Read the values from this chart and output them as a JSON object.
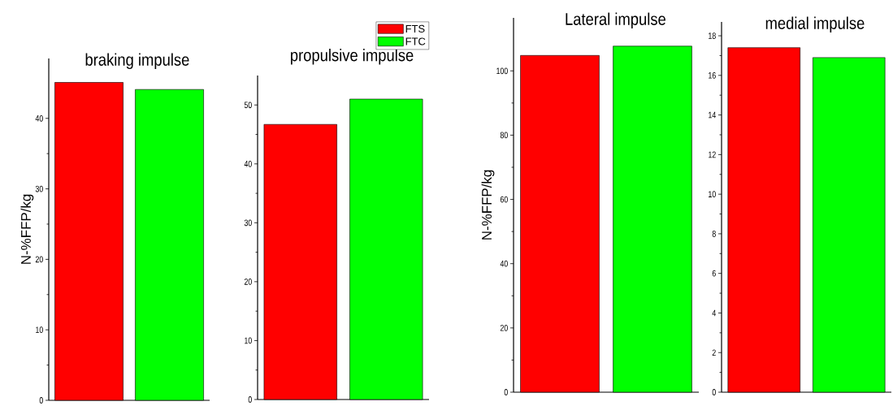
{
  "chart_data": [
    {
      "type": "bar",
      "title": "braking impulse",
      "ylabel": "N-%FFP/kg",
      "categories": [
        null,
        null
      ],
      "ylim": [
        0,
        48.5
      ],
      "yticks": [
        0,
        10,
        20,
        30,
        40
      ],
      "series": [
        {
          "color": "#ff0000",
          "values": [
            45.1,
            null
          ]
        },
        {
          "color": "#00ff00",
          "values": [
            null,
            44.1
          ]
        }
      ]
    },
    {
      "type": "bar",
      "title": "propulsive impulse",
      "categories": [
        null,
        null
      ],
      "ylim": [
        0,
        55
      ],
      "yticks": [
        0,
        10,
        20,
        30,
        40,
        50
      ],
      "legend": "top right",
      "series": [
        {
          "name": "FTS",
          "color": "#ff0000",
          "values": [
            46.7,
            null
          ]
        },
        {
          "name": "FTC",
          "color": "#00ff00",
          "values": [
            null,
            51.0
          ]
        }
      ]
    },
    {
      "type": "bar",
      "title": "Lateral impulse",
      "ylabel": "N-%FFP/kg",
      "categories": [
        null,
        null
      ],
      "ylim": [
        0,
        116.5
      ],
      "yticks": [
        0,
        20,
        40,
        60,
        80,
        100
      ],
      "series": [
        {
          "color": "#ff0000",
          "values": [
            104.8,
            null
          ]
        },
        {
          "color": "#00ff00",
          "values": [
            null,
            107.7
          ]
        }
      ]
    },
    {
      "type": "bar",
      "title": "medial impulse",
      "categories": [
        null,
        null
      ],
      "ylim": [
        0,
        18.7
      ],
      "yticks": [
        0,
        2,
        4,
        6,
        8,
        10,
        12,
        14,
        16,
        18
      ],
      "series": [
        {
          "color": "#ff0000",
          "values": [
            17.4,
            null
          ]
        },
        {
          "color": "#00ff00",
          "values": [
            null,
            16.9
          ]
        }
      ]
    }
  ]
}
